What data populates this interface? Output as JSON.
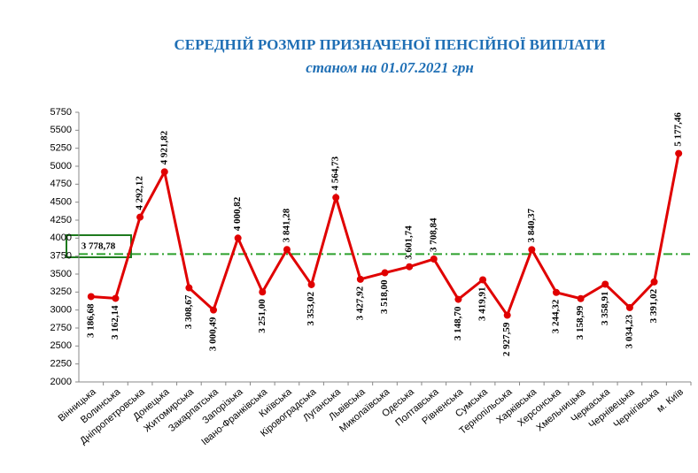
{
  "chart_data": {
    "type": "line",
    "title": "СЕРЕДНІЙ РОЗМІР ПРИЗНАЧЕНОЇ ПЕНСІЙНОЇ ВИПЛАТИ",
    "subtitle": "станом на 01.07.2021 грн",
    "categories": [
      "Вінницька",
      "Волинська",
      "Дніпропетровська",
      "Донецька",
      "Житомирська",
      "Закарпатська",
      "Запорізька",
      "Івано-Франківська",
      "Київська",
      "Кіровоградська",
      "Луганська",
      "Львівська",
      "Миколаївська",
      "Одеська",
      "Полтавська",
      "Рівненська",
      "Сумська",
      "Тернопільська",
      "Харківська",
      "Херсонська",
      "Хмельницька",
      "Черкаська",
      "Чернівецька",
      "Чернігівська",
      "м. Київ"
    ],
    "values": [
      3186.68,
      3162.14,
      4292.12,
      4921.82,
      3308.67,
      3000.49,
      4000.82,
      3251.0,
      3841.28,
      3353.02,
      4564.73,
      3427.92,
      3518.0,
      3601.74,
      3708.84,
      3148.7,
      3419.91,
      2927.59,
      3840.37,
      3244.32,
      3158.99,
      3358.91,
      3034.23,
      3391.02,
      5177.46
    ],
    "value_labels": [
      "3 186,68",
      "3 162,14",
      "4 292,12",
      "4 921,82",
      "3 308,67",
      "3 000,49",
      "4 000,82",
      "3 251,00",
      "3 841,28",
      "3 353,02",
      "4 564,73",
      "3 427,92",
      "3 518,00",
      "3 601,74",
      "3 708,84",
      "3 148,70",
      "3 419,91",
      "2 927,59",
      "3 840,37",
      "3 244,32",
      "3 158,99",
      "3 358,91",
      "3 034,23",
      "3 391,02",
      "5 177,46"
    ],
    "color": "#e00000",
    "reference_line": {
      "value": 3778.78,
      "label": "3 778,78",
      "color": "#2ca02c"
    },
    "ylim": [
      2000,
      5750
    ],
    "yticks": [
      2000,
      2250,
      2500,
      2750,
      3000,
      3250,
      3500,
      3750,
      4000,
      4250,
      4500,
      4750,
      5000,
      5250,
      5500,
      5750
    ]
  }
}
